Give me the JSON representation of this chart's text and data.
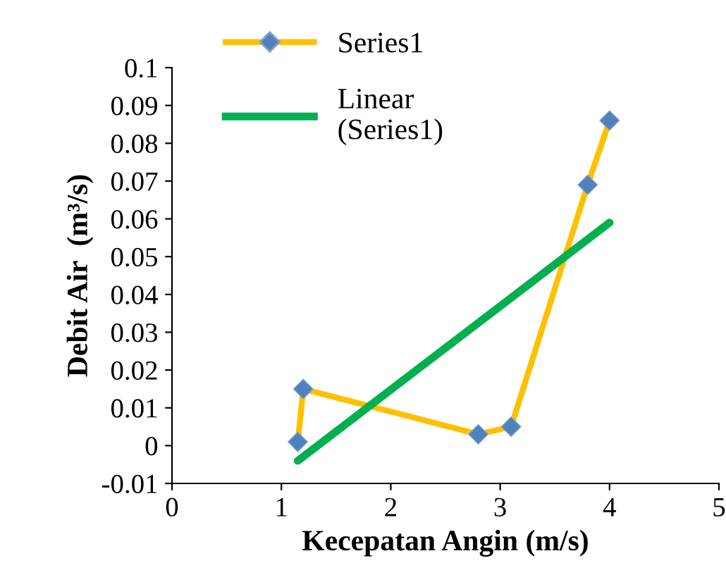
{
  "chart_data": {
    "type": "line",
    "xlabel": "Kecepatan Angin (m/s)",
    "ylabel": "Debit Air  (m³/s)",
    "xlim": [
      0,
      5
    ],
    "xticks": [
      0,
      1,
      2,
      3,
      4,
      5
    ],
    "ylim": [
      -0.01,
      0.1
    ],
    "yticks": [
      -0.01,
      0,
      0.01,
      0.02,
      0.03,
      0.04,
      0.05,
      0.06,
      0.07,
      0.08,
      0.09,
      0.1
    ],
    "grid": false,
    "legend": "top left",
    "series": [
      {
        "name": "Series1",
        "color": "#ffc000",
        "marker": "diamond",
        "x": [
          1.15,
          1.2,
          2.8,
          3.1,
          3.8,
          4.0
        ],
        "values": [
          0.001,
          0.015,
          0.003,
          0.005,
          0.069,
          0.086
        ]
      },
      {
        "name": "Linear\n(Series1)",
        "color": "#00b050",
        "marker": "none",
        "x": [
          1.15,
          4.0
        ],
        "values": [
          -0.004,
          0.059
        ]
      }
    ]
  }
}
